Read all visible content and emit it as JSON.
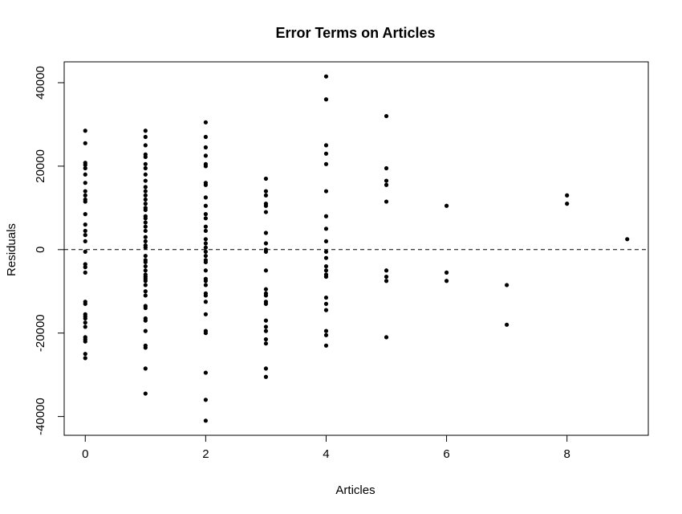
{
  "chart_data": {
    "type": "scatter",
    "title": "Error Terms on Articles",
    "xlabel": "Articles",
    "ylabel": "Residuals",
    "xlim": [
      -0.35,
      9.35
    ],
    "ylim": [
      -44500,
      45000
    ],
    "x_ticks": [
      0,
      2,
      4,
      6,
      8
    ],
    "y_ticks": [
      -40000,
      -20000,
      0,
      20000,
      40000
    ],
    "reference_line": {
      "y": 0,
      "style": "dashed"
    },
    "grid": false,
    "legend": "none",
    "point_color": "#000000",
    "points": [
      {
        "x": 0,
        "y": 28500
      },
      {
        "x": 0,
        "y": 25500
      },
      {
        "x": 0,
        "y": 20800
      },
      {
        "x": 0,
        "y": 20300
      },
      {
        "x": 0,
        "y": 19500
      },
      {
        "x": 0,
        "y": 18000
      },
      {
        "x": 0,
        "y": 16000
      },
      {
        "x": 0,
        "y": 14000
      },
      {
        "x": 0,
        "y": 13000
      },
      {
        "x": 0,
        "y": 12000
      },
      {
        "x": 0,
        "y": 11500
      },
      {
        "x": 0,
        "y": 8500
      },
      {
        "x": 0,
        "y": 6000
      },
      {
        "x": 0,
        "y": 4500
      },
      {
        "x": 0,
        "y": 3500
      },
      {
        "x": 0,
        "y": 2000
      },
      {
        "x": 0,
        "y": -500
      },
      {
        "x": 0,
        "y": -3500
      },
      {
        "x": 0,
        "y": -4200
      },
      {
        "x": 0,
        "y": -5500
      },
      {
        "x": 0,
        "y": -12500
      },
      {
        "x": 0,
        "y": -13000
      },
      {
        "x": 0,
        "y": -15500
      },
      {
        "x": 0,
        "y": -16000
      },
      {
        "x": 0,
        "y": -16500
      },
      {
        "x": 0,
        "y": -17500
      },
      {
        "x": 0,
        "y": -18500
      },
      {
        "x": 0,
        "y": -21000
      },
      {
        "x": 0,
        "y": -21500
      },
      {
        "x": 0,
        "y": -22000
      },
      {
        "x": 0,
        "y": -25000
      },
      {
        "x": 0,
        "y": -26000
      },
      {
        "x": 1,
        "y": 28500
      },
      {
        "x": 1,
        "y": 27000
      },
      {
        "x": 1,
        "y": 25000
      },
      {
        "x": 1,
        "y": 22800
      },
      {
        "x": 1,
        "y": 22200
      },
      {
        "x": 1,
        "y": 20500
      },
      {
        "x": 1,
        "y": 19500
      },
      {
        "x": 1,
        "y": 18000
      },
      {
        "x": 1,
        "y": 16500
      },
      {
        "x": 1,
        "y": 15000
      },
      {
        "x": 1,
        "y": 14000
      },
      {
        "x": 1,
        "y": 13000
      },
      {
        "x": 1,
        "y": 12000
      },
      {
        "x": 1,
        "y": 11000
      },
      {
        "x": 1,
        "y": 10000
      },
      {
        "x": 1,
        "y": 9500
      },
      {
        "x": 1,
        "y": 8000
      },
      {
        "x": 1,
        "y": 7500
      },
      {
        "x": 1,
        "y": 6500
      },
      {
        "x": 1,
        "y": 5500
      },
      {
        "x": 1,
        "y": 4500
      },
      {
        "x": 1,
        "y": 3000
      },
      {
        "x": 1,
        "y": 2000
      },
      {
        "x": 1,
        "y": 1000
      },
      {
        "x": 1,
        "y": 500
      },
      {
        "x": 1,
        "y": -1500
      },
      {
        "x": 1,
        "y": -2500
      },
      {
        "x": 1,
        "y": -3000
      },
      {
        "x": 1,
        "y": -4000
      },
      {
        "x": 1,
        "y": -5000
      },
      {
        "x": 1,
        "y": -6000
      },
      {
        "x": 1,
        "y": -6500
      },
      {
        "x": 1,
        "y": -7000
      },
      {
        "x": 1,
        "y": -7500
      },
      {
        "x": 1,
        "y": -8500
      },
      {
        "x": 1,
        "y": -10000
      },
      {
        "x": 1,
        "y": -11000
      },
      {
        "x": 1,
        "y": -13500
      },
      {
        "x": 1,
        "y": -14000
      },
      {
        "x": 1,
        "y": -16500
      },
      {
        "x": 1,
        "y": -17000
      },
      {
        "x": 1,
        "y": -19500
      },
      {
        "x": 1,
        "y": -23000
      },
      {
        "x": 1,
        "y": -23500
      },
      {
        "x": 1,
        "y": -28500
      },
      {
        "x": 1,
        "y": -34500
      },
      {
        "x": 2,
        "y": 30500
      },
      {
        "x": 2,
        "y": 27000
      },
      {
        "x": 2,
        "y": 24500
      },
      {
        "x": 2,
        "y": 22500
      },
      {
        "x": 2,
        "y": 20500
      },
      {
        "x": 2,
        "y": 20000
      },
      {
        "x": 2,
        "y": 16000
      },
      {
        "x": 2,
        "y": 15500
      },
      {
        "x": 2,
        "y": 12500
      },
      {
        "x": 2,
        "y": 10500
      },
      {
        "x": 2,
        "y": 8500
      },
      {
        "x": 2,
        "y": 7500
      },
      {
        "x": 2,
        "y": 5500
      },
      {
        "x": 2,
        "y": 4500
      },
      {
        "x": 2,
        "y": 2500
      },
      {
        "x": 2,
        "y": 1500
      },
      {
        "x": 2,
        "y": 500
      },
      {
        "x": 2,
        "y": -500
      },
      {
        "x": 2,
        "y": -1500
      },
      {
        "x": 2,
        "y": -2500
      },
      {
        "x": 2,
        "y": -3000
      },
      {
        "x": 2,
        "y": -5000
      },
      {
        "x": 2,
        "y": -7000
      },
      {
        "x": 2,
        "y": -7500
      },
      {
        "x": 2,
        "y": -8500
      },
      {
        "x": 2,
        "y": -10500
      },
      {
        "x": 2,
        "y": -11000
      },
      {
        "x": 2,
        "y": -12500
      },
      {
        "x": 2,
        "y": -15500
      },
      {
        "x": 2,
        "y": -19500
      },
      {
        "x": 2,
        "y": -20000
      },
      {
        "x": 2,
        "y": -29500
      },
      {
        "x": 2,
        "y": -36000
      },
      {
        "x": 2,
        "y": -41000
      },
      {
        "x": 3,
        "y": 17000
      },
      {
        "x": 3,
        "y": 14000
      },
      {
        "x": 3,
        "y": 13000
      },
      {
        "x": 3,
        "y": 11000
      },
      {
        "x": 3,
        "y": 10500
      },
      {
        "x": 3,
        "y": 9000
      },
      {
        "x": 3,
        "y": 4000
      },
      {
        "x": 3,
        "y": 1500
      },
      {
        "x": 3,
        "y": 0
      },
      {
        "x": 3,
        "y": -500
      },
      {
        "x": 3,
        "y": -5000
      },
      {
        "x": 3,
        "y": -9500
      },
      {
        "x": 3,
        "y": -10500
      },
      {
        "x": 3,
        "y": -11000
      },
      {
        "x": 3,
        "y": -12500
      },
      {
        "x": 3,
        "y": -13000
      },
      {
        "x": 3,
        "y": -17000
      },
      {
        "x": 3,
        "y": -18500
      },
      {
        "x": 3,
        "y": -19500
      },
      {
        "x": 3,
        "y": -21500
      },
      {
        "x": 3,
        "y": -22500
      },
      {
        "x": 3,
        "y": -28500
      },
      {
        "x": 3,
        "y": -30500
      },
      {
        "x": 4,
        "y": 41500
      },
      {
        "x": 4,
        "y": 36000
      },
      {
        "x": 4,
        "y": 25000
      },
      {
        "x": 4,
        "y": 23000
      },
      {
        "x": 4,
        "y": 20500
      },
      {
        "x": 4,
        "y": 14000
      },
      {
        "x": 4,
        "y": 8000
      },
      {
        "x": 4,
        "y": 5000
      },
      {
        "x": 4,
        "y": 2000
      },
      {
        "x": 4,
        "y": -500
      },
      {
        "x": 4,
        "y": -2000
      },
      {
        "x": 4,
        "y": -4000
      },
      {
        "x": 4,
        "y": -5000
      },
      {
        "x": 4,
        "y": -6000
      },
      {
        "x": 4,
        "y": -6500
      },
      {
        "x": 4,
        "y": -11500
      },
      {
        "x": 4,
        "y": -13000
      },
      {
        "x": 4,
        "y": -14500
      },
      {
        "x": 4,
        "y": -19500
      },
      {
        "x": 4,
        "y": -20500
      },
      {
        "x": 4,
        "y": -23000
      },
      {
        "x": 5,
        "y": 32000
      },
      {
        "x": 5,
        "y": 19500
      },
      {
        "x": 5,
        "y": 16500
      },
      {
        "x": 5,
        "y": 15500
      },
      {
        "x": 5,
        "y": 11500
      },
      {
        "x": 5,
        "y": -5000
      },
      {
        "x": 5,
        "y": -6500
      },
      {
        "x": 5,
        "y": -7500
      },
      {
        "x": 5,
        "y": -21000
      },
      {
        "x": 6,
        "y": 10500
      },
      {
        "x": 6,
        "y": -5500
      },
      {
        "x": 6,
        "y": -7500
      },
      {
        "x": 7,
        "y": -8500
      },
      {
        "x": 7,
        "y": -18000
      },
      {
        "x": 8,
        "y": 13000
      },
      {
        "x": 8,
        "y": 11000
      },
      {
        "x": 9,
        "y": 2500
      }
    ]
  }
}
